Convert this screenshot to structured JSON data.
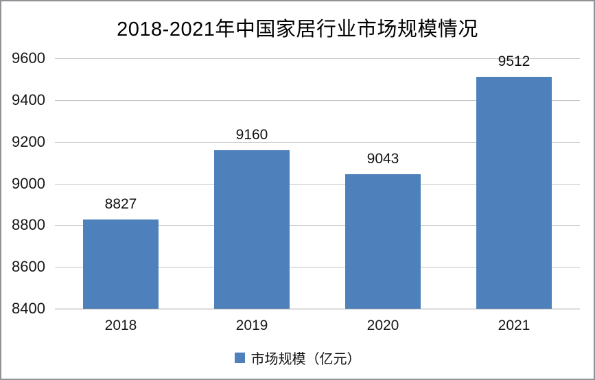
{
  "chart_data": {
    "type": "bar",
    "title": "2018-2021年中国家居行业市场规模情况",
    "categories": [
      "2018",
      "2019",
      "2020",
      "2021"
    ],
    "series": [
      {
        "name": "市场规模（亿元）",
        "values": [
          8827,
          9160,
          9043,
          9512
        ]
      }
    ],
    "data_labels": [
      8827,
      9160,
      9043,
      9512
    ],
    "xlabel": "",
    "ylabel": "",
    "ylim": [
      8400,
      9600
    ],
    "yticks": [
      8400,
      8600,
      8800,
      9000,
      9200,
      9400,
      9600
    ],
    "grid": true,
    "legend_position": "bottom",
    "colors": {
      "bar": "#4E81BC",
      "gridline": "#C4C4C4",
      "axis_line": "#9D9D9D",
      "text": "#111111",
      "border": "#909295"
    }
  }
}
